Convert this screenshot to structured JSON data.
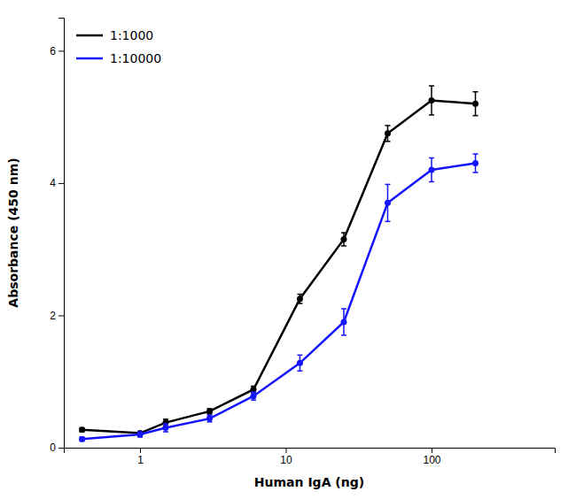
{
  "chart_data": {
    "type": "line",
    "xlabel": "Human IgA (ng)",
    "ylabel": "Absorbance (450 nm)",
    "log": "x",
    "xlim": [
      0.3,
      700
    ],
    "ylim": [
      0,
      6.5
    ],
    "xticks": [
      1,
      10,
      100
    ],
    "yticks": [
      0,
      2,
      4,
      6
    ],
    "grid": false,
    "legend": "upper left",
    "marker": "circle",
    "x": [
      0.4,
      1.0,
      1.5,
      3.0,
      6.0,
      12.5,
      25.0,
      50.0,
      100.0,
      200.0
    ],
    "series": [
      {
        "name": "1:1000",
        "color": "#000000",
        "values": [
          0.27,
          0.22,
          0.38,
          0.55,
          0.88,
          2.25,
          3.15,
          4.75,
          5.25,
          5.2
        ],
        "errors": [
          0.03,
          0.02,
          0.05,
          0.04,
          0.05,
          0.07,
          0.1,
          0.12,
          0.22,
          0.18
        ]
      },
      {
        "name": "1:10000",
        "color": "#1414FF",
        "values": [
          0.13,
          0.2,
          0.3,
          0.44,
          0.78,
          1.28,
          1.9,
          3.7,
          4.2,
          4.3
        ],
        "errors": [
          0.03,
          0.04,
          0.06,
          0.05,
          0.06,
          0.12,
          0.2,
          0.28,
          0.18,
          0.14
        ]
      }
    ]
  }
}
